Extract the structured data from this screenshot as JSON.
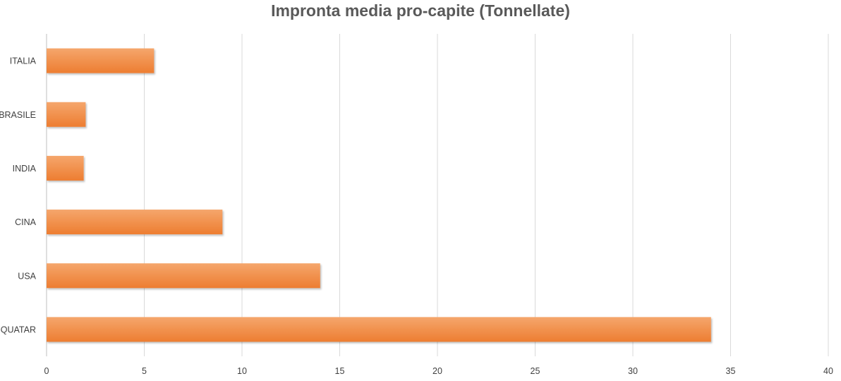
{
  "chart_data": {
    "type": "bar",
    "orientation": "horizontal",
    "title": "Impronta media pro-capite (Tonnellate)",
    "categories": [
      "ITALIA",
      "BRASILE",
      "INDIA",
      "CINA",
      "USA",
      "QUATAR"
    ],
    "values": [
      5.5,
      2,
      1.9,
      9,
      14,
      34
    ],
    "xlim": [
      0,
      40
    ],
    "xticks": [
      0,
      5,
      10,
      15,
      20,
      25,
      30,
      35,
      40
    ],
    "grid": "vertical",
    "legend": "none",
    "bar_color": "#ED7D31",
    "bar_color_light": "#F5A66C"
  }
}
